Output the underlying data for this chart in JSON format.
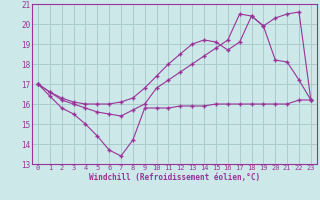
{
  "bg_color": "#cce8e8",
  "grid_color": "#aacccc",
  "line_color": "#993399",
  "marker_color": "#993399",
  "xlabel": "Windchill (Refroidissement éolien,°C)",
  "xlim": [
    -0.5,
    23.5
  ],
  "ylim": [
    13,
    21
  ],
  "yticks": [
    13,
    14,
    15,
    16,
    17,
    18,
    19,
    20,
    21
  ],
  "xticks": [
    0,
    1,
    2,
    3,
    4,
    5,
    6,
    7,
    8,
    9,
    10,
    11,
    12,
    13,
    14,
    15,
    16,
    17,
    18,
    19,
    20,
    21,
    22,
    23
  ],
  "series": [
    {
      "x": [
        0,
        1,
        2,
        3,
        4,
        5,
        6,
        7,
        8,
        9,
        10,
        11,
        12,
        13,
        14,
        15,
        16,
        17,
        18,
        19,
        20,
        21,
        22,
        23
      ],
      "y": [
        17.0,
        16.4,
        15.8,
        15.5,
        15.0,
        14.4,
        13.7,
        13.4,
        14.2,
        15.8,
        15.8,
        15.8,
        15.9,
        15.9,
        15.9,
        16.0,
        16.0,
        16.0,
        16.0,
        16.0,
        16.0,
        16.0,
        16.2,
        16.2
      ]
    },
    {
      "x": [
        0,
        1,
        2,
        3,
        4,
        5,
        6,
        7,
        8,
        9,
        10,
        11,
        12,
        13,
        14,
        15,
        16,
        17,
        18,
        19,
        20,
        21,
        22,
        23
      ],
      "y": [
        17.0,
        16.6,
        16.3,
        16.1,
        16.0,
        16.0,
        16.0,
        16.1,
        16.3,
        16.8,
        17.4,
        18.0,
        18.5,
        19.0,
        19.2,
        19.1,
        18.7,
        19.1,
        20.4,
        19.9,
        18.2,
        18.1,
        17.2,
        16.2
      ]
    },
    {
      "x": [
        0,
        1,
        2,
        3,
        4,
        5,
        6,
        7,
        8,
        9,
        10,
        11,
        12,
        13,
        14,
        15,
        16,
        17,
        18,
        19,
        20,
        21,
        22,
        23
      ],
      "y": [
        17.0,
        16.6,
        16.2,
        16.0,
        15.8,
        15.6,
        15.5,
        15.4,
        15.7,
        16.0,
        16.8,
        17.2,
        17.6,
        18.0,
        18.4,
        18.8,
        19.2,
        20.5,
        20.4,
        19.9,
        20.3,
        20.5,
        20.6,
        16.2
      ]
    }
  ]
}
